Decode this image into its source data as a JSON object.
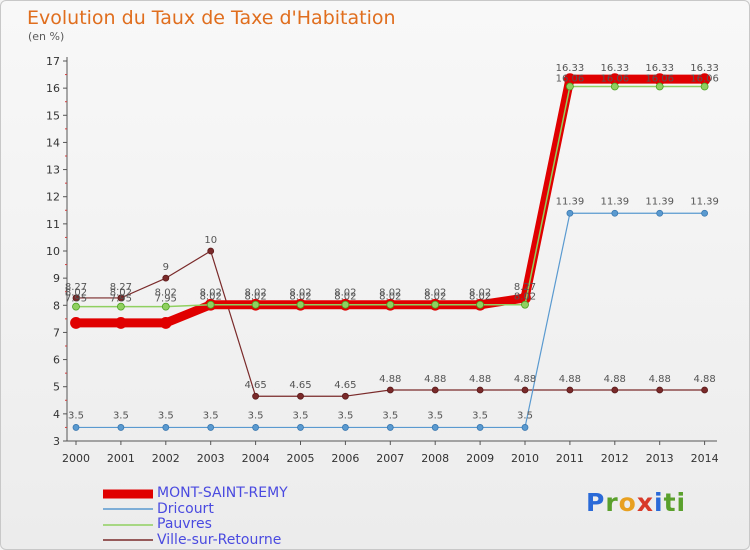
{
  "chart_data": {
    "type": "line",
    "title": "Evolution du Taux de Taxe d'Habitation",
    "subtitle": "(en %)",
    "x": [
      "2000",
      "2001",
      "2002",
      "2003",
      "2004",
      "2005",
      "2006",
      "2007",
      "2008",
      "2009",
      "2010",
      "2011",
      "2012",
      "2013",
      "2014"
    ],
    "ylim": [
      3,
      17
    ],
    "yticks": [
      3,
      4,
      5,
      6,
      7,
      8,
      9,
      10,
      11,
      12,
      13,
      14,
      15,
      16,
      17
    ],
    "grid": false,
    "legend_position": "bottom-left",
    "series": [
      {
        "name": "MONT-SAINT-REMY",
        "color": "#e00000",
        "values": [
          7.35,
          7.35,
          7.35,
          8.02,
          8.02,
          8.02,
          8.02,
          8.02,
          8.02,
          8.02,
          8.27,
          16.33,
          16.33,
          16.33,
          16.33
        ],
        "labels": [
          "",
          "",
          "",
          "",
          "",
          "",
          "",
          "",
          "",
          "",
          "8.27",
          "16.33",
          "16.33",
          "16.33",
          "16.33"
        ]
      },
      {
        "name": "Dricourt",
        "color": "#5a9ad0",
        "values": [
          3.5,
          3.5,
          3.5,
          3.5,
          3.5,
          3.5,
          3.5,
          3.5,
          3.5,
          3.5,
          3.5,
          11.39,
          11.39,
          11.39,
          11.39
        ],
        "labels": [
          "3.5",
          "3.5",
          "3.5",
          "3.5",
          "3.5",
          "3.5",
          "3.5",
          "3.5",
          "3.5",
          "3.5",
          "3.5",
          "11.39",
          "11.39",
          "11.39",
          "11.39"
        ]
      },
      {
        "name": "Pauvres",
        "color": "#90d060",
        "values": [
          7.95,
          7.95,
          7.95,
          8.02,
          8.02,
          8.02,
          8.02,
          8.02,
          8.02,
          8.02,
          8.02,
          16.06,
          16.06,
          16.06,
          16.06
        ],
        "labels": [
          "7.95",
          "7.95",
          "7.95",
          "8.02",
          "8.02",
          "8.02",
          "8.02",
          "8.02",
          "8.02",
          "8.02",
          "8.02",
          "16.06",
          "16.06",
          "16.06",
          "16.06"
        ]
      },
      {
        "name": "Ville-sur-Retourne",
        "color": "#7a2a2a",
        "values": [
          8.27,
          8.27,
          9,
          10,
          4.65,
          4.65,
          4.65,
          4.88,
          4.88,
          4.88,
          4.88,
          4.88,
          4.88,
          4.88,
          4.88
        ],
        "labels": [
          "8.27",
          "8.27",
          "9",
          "10",
          "4.65",
          "4.65",
          "4.65",
          "4.88",
          "4.88",
          "4.88",
          "4.88",
          "4.88",
          "4.88",
          "4.88",
          "4.88"
        ],
        "extra_labels": [
          "8.02",
          "8.02",
          "8.02",
          "8.02",
          "8.02",
          "8.02",
          "8.02",
          "8.02",
          "8.02",
          "8.02",
          "",
          "",
          "",
          "",
          ""
        ]
      }
    ]
  },
  "brand": {
    "letters": [
      "P",
      "r",
      "o",
      "x",
      "i",
      "ti"
    ]
  }
}
